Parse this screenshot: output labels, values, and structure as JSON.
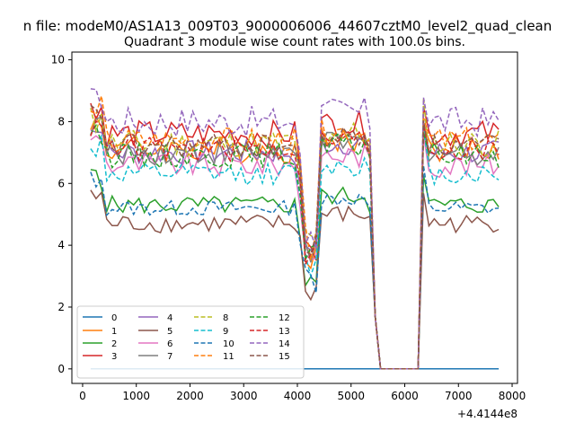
{
  "chart_data": {
    "type": "line",
    "suptitle": "n file: modeM0/AS1A13_009T03_9000006006_44607cztM0_level2_quad_clean",
    "title": "Quadrant 3 module wise count rates with 100.0s bins.",
    "xlabel": "",
    "ylabel": "",
    "x_offset_label": "+4.4144e8",
    "xlim": [
      -200,
      8100
    ],
    "ylim": [
      -0.47,
      10.25
    ],
    "xticks": [
      0,
      1000,
      2000,
      3000,
      4000,
      5000,
      6000,
      7000,
      8000
    ],
    "yticks": [
      0,
      2,
      4,
      6,
      8,
      10
    ],
    "xtick_labels": [
      "0",
      "1000",
      "2000",
      "3000",
      "4000",
      "5000",
      "6000",
      "7000",
      "8000"
    ],
    "ytick_labels": [
      "0",
      "2",
      "4",
      "6",
      "8",
      "10"
    ],
    "grid": false,
    "legend_position": "lower-left",
    "legend_ncol": 4,
    "x_start": 150,
    "x_step": 100,
    "gaps": [
      {
        "from": 5550,
        "to": 6250
      }
    ],
    "series": [
      {
        "name": "0",
        "color": "#1f77b4",
        "dashed": false,
        "base": 0.0,
        "amp": 0.0,
        "phase": 0
      },
      {
        "name": "1",
        "color": "#ff7f0e",
        "dashed": false,
        "base": 7.1,
        "amp": 0.45,
        "phase": 1
      },
      {
        "name": "2",
        "color": "#2ca02c",
        "dashed": false,
        "base": 5.3,
        "amp": 0.3,
        "phase": 2
      },
      {
        "name": "3",
        "color": "#d62728",
        "dashed": false,
        "base": 7.6,
        "amp": 0.45,
        "phase": 3
      },
      {
        "name": "4",
        "color": "#9467bd",
        "dashed": false,
        "base": 7.0,
        "amp": 0.4,
        "phase": 4
      },
      {
        "name": "5",
        "color": "#8c564b",
        "dashed": false,
        "base": 4.7,
        "amp": 0.3,
        "phase": 5
      },
      {
        "name": "6",
        "color": "#e377c2",
        "dashed": false,
        "base": 6.6,
        "amp": 0.4,
        "phase": 6
      },
      {
        "name": "7",
        "color": "#7f7f7f",
        "dashed": false,
        "base": 7.0,
        "amp": 0.4,
        "phase": 7
      },
      {
        "name": "8",
        "color": "#bcbd22",
        "dashed": true,
        "base": 7.3,
        "amp": 0.45,
        "phase": 8
      },
      {
        "name": "9",
        "color": "#17becf",
        "dashed": true,
        "base": 6.3,
        "amp": 0.35,
        "phase": 9
      },
      {
        "name": "10",
        "color": "#1f77b4",
        "dashed": true,
        "base": 5.2,
        "amp": 0.25,
        "phase": 10
      },
      {
        "name": "11",
        "color": "#ff7f0e",
        "dashed": true,
        "base": 7.4,
        "amp": 0.4,
        "phase": 11
      },
      {
        "name": "12",
        "color": "#2ca02c",
        "dashed": true,
        "base": 6.9,
        "amp": 0.4,
        "phase": 12
      },
      {
        "name": "13",
        "color": "#d62728",
        "dashed": true,
        "base": 7.1,
        "amp": 0.4,
        "phase": 13
      },
      {
        "name": "14",
        "color": "#9467bd",
        "dashed": true,
        "base": 8.0,
        "amp": 0.5,
        "phase": 14
      },
      {
        "name": "15",
        "color": "#8c564b",
        "dashed": true,
        "base": 7.2,
        "amp": 0.4,
        "phase": 15
      }
    ]
  }
}
